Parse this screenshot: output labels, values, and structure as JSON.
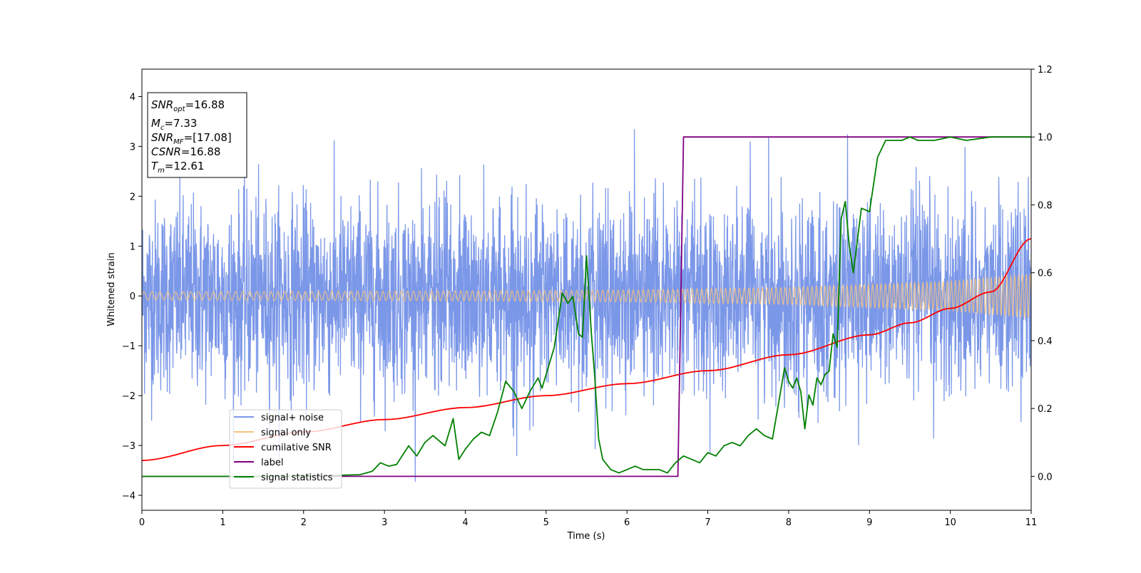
{
  "chart_data": {
    "type": "line",
    "xlabel": "Time (s)",
    "ylabel": "Whitened strain",
    "xlim": [
      0,
      11
    ],
    "ylim": [
      -4.3,
      4.55
    ],
    "y2lim": [
      -0.1,
      1.2
    ],
    "grid": false,
    "x_ticks": [
      "0",
      "1",
      "2",
      "3",
      "4",
      "5",
      "6",
      "7",
      "8",
      "9",
      "10",
      "11"
    ],
    "y_ticks": [
      "−4",
      "−3",
      "−2",
      "−1",
      "0",
      "1",
      "2",
      "3",
      "4"
    ],
    "y2_ticks": [
      "0.0",
      "0.2",
      "0.4",
      "0.6",
      "0.8",
      "1.0",
      "1.2"
    ],
    "infobox": {
      "snr_opt": {
        "sym": "SNR",
        "sub": "opt",
        "value": "=16.88"
      },
      "mc": {
        "sym": "M",
        "sub": "c",
        "value": "=7.33"
      },
      "snr_mf": {
        "sym": "SNR",
        "sub": "MF",
        "value": "=[17.08]"
      },
      "csnr": {
        "sym": "CSNR",
        "sub": "",
        "value": "=16.88"
      },
      "tm": {
        "sym": "T",
        "sub": "m",
        "value": "=12.61"
      }
    },
    "legend": {
      "placement": "lower-left",
      "entries": [
        {
          "label": "signal+ noise",
          "color": "#7b97e8"
        },
        {
          "label": "signal only",
          "color": "#f6c27e"
        },
        {
          "label": "cumilative SNR",
          "color": "#ff0000"
        },
        {
          "label": "label",
          "color": "#800080"
        },
        {
          "label": "signal statistics",
          "color": "#008000"
        }
      ]
    },
    "series": [
      {
        "name": "signal+ noise",
        "axis": "left",
        "color": "#7b97e8",
        "description_values": {
          "noise_std": 0.95,
          "typical_range": [
            -3.8,
            3.9
          ]
        }
      },
      {
        "name": "signal only",
        "axis": "left",
        "color": "#f6c27e",
        "envelope": {
          "x": [
            0,
            2,
            4,
            6,
            8,
            10,
            11
          ],
          "amplitude": [
            0.08,
            0.09,
            0.1,
            0.12,
            0.17,
            0.3,
            0.45
          ]
        }
      },
      {
        "name": "cumilative SNR",
        "axis": "left",
        "color": "#ff0000",
        "x": [
          0,
          1,
          2,
          3,
          4,
          5,
          6,
          7,
          8,
          9,
          9.5,
          10,
          10.5,
          11
        ],
        "y": [
          -3.3,
          -3.0,
          -2.73,
          -2.48,
          -2.24,
          -2.0,
          -1.76,
          -1.5,
          -1.18,
          -0.78,
          -0.54,
          -0.25,
          0.08,
          1.15
        ]
      },
      {
        "name": "label",
        "axis": "right",
        "color": "#800080",
        "x": [
          0,
          6.63,
          6.7,
          11
        ],
        "y": [
          0.0,
          0.0,
          1.0,
          1.0
        ]
      },
      {
        "name": "signal statistics",
        "axis": "right",
        "color": "#008000",
        "x": [
          0,
          1,
          2,
          2.7,
          2.85,
          2.95,
          3.05,
          3.15,
          3.3,
          3.4,
          3.5,
          3.6,
          3.75,
          3.85,
          3.92,
          4.0,
          4.1,
          4.2,
          4.3,
          4.4,
          4.5,
          4.6,
          4.7,
          4.8,
          4.9,
          4.95,
          5.0,
          5.1,
          5.2,
          5.27,
          5.33,
          5.4,
          5.45,
          5.5,
          5.56,
          5.6,
          5.65,
          5.7,
          5.8,
          5.9,
          6.0,
          6.1,
          6.2,
          6.3,
          6.4,
          6.5,
          6.6,
          6.7,
          6.8,
          6.9,
          7.0,
          7.1,
          7.2,
          7.3,
          7.4,
          7.5,
          7.6,
          7.7,
          7.8,
          7.85,
          7.9,
          7.95,
          8.0,
          8.05,
          8.1,
          8.15,
          8.2,
          8.25,
          8.3,
          8.35,
          8.4,
          8.45,
          8.5,
          8.55,
          8.6,
          8.65,
          8.7,
          8.75,
          8.8,
          8.9,
          9.0,
          9.1,
          9.2,
          9.3,
          9.4,
          9.5,
          9.6,
          9.8,
          10.0,
          10.2,
          10.5,
          11
        ],
        "y": [
          0.0,
          0.0,
          0.0,
          0.005,
          0.015,
          0.04,
          0.03,
          0.035,
          0.09,
          0.06,
          0.1,
          0.12,
          0.09,
          0.17,
          0.05,
          0.08,
          0.11,
          0.13,
          0.12,
          0.19,
          0.28,
          0.25,
          0.2,
          0.25,
          0.29,
          0.26,
          0.3,
          0.38,
          0.54,
          0.51,
          0.53,
          0.42,
          0.41,
          0.65,
          0.42,
          0.3,
          0.11,
          0.05,
          0.02,
          0.01,
          0.02,
          0.03,
          0.02,
          0.02,
          0.02,
          0.01,
          0.04,
          0.06,
          0.05,
          0.04,
          0.07,
          0.06,
          0.09,
          0.1,
          0.09,
          0.12,
          0.14,
          0.12,
          0.11,
          0.18,
          0.25,
          0.32,
          0.28,
          0.26,
          0.29,
          0.25,
          0.14,
          0.24,
          0.21,
          0.29,
          0.27,
          0.3,
          0.31,
          0.42,
          0.38,
          0.76,
          0.81,
          0.68,
          0.6,
          0.79,
          0.78,
          0.94,
          0.99,
          0.99,
          0.99,
          1.0,
          0.99,
          0.99,
          1.0,
          0.99,
          1.0,
          1.0
        ]
      }
    ]
  }
}
